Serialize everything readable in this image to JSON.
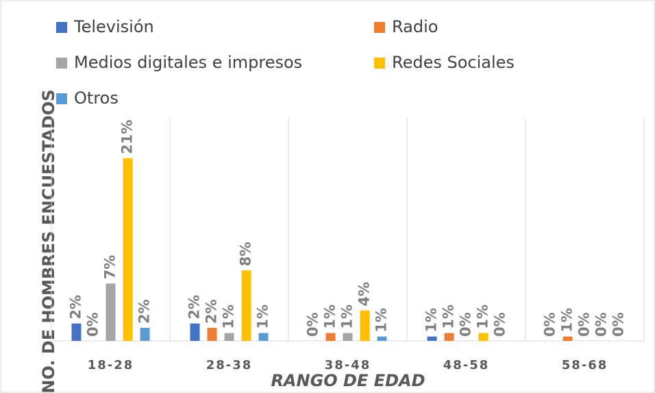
{
  "chart_data": {
    "type": "bar",
    "categories": [
      "18-28",
      "28-38",
      "38-48",
      "48-58",
      "58-68"
    ],
    "x_label": "RANGO DE EDAD",
    "y_label": "NO. DE HOMBRES ENCUESTADOS",
    "ylim": [
      0,
      25
    ],
    "series": [
      {
        "name": "Televisión",
        "color": "#4472c4",
        "values": [
          2.0,
          2.0,
          0,
          0.5,
          0
        ],
        "value_labels": [
          "2%",
          "2%",
          "0%",
          "1%",
          "0%"
        ]
      },
      {
        "name": "Radio",
        "color": "#ed7d31",
        "values": [
          0,
          1.5,
          0.9,
          0.9,
          0.5
        ],
        "value_labels": [
          "0%",
          "2%",
          "1%",
          "1%",
          "1%"
        ]
      },
      {
        "name": "Medios digitales e impresos",
        "color": "#a5a5a5",
        "values": [
          6.6,
          0.9,
          0.9,
          0,
          0
        ],
        "value_labels": [
          "7%",
          "1%",
          "1%",
          "0%",
          "0%"
        ]
      },
      {
        "name": "Redes Sociales",
        "color": "#ffc000",
        "values": [
          21,
          8.1,
          3.5,
          0.9,
          0
        ],
        "value_labels": [
          "21%",
          "8%",
          "4%",
          "1%",
          "0%"
        ]
      },
      {
        "name": "Otros",
        "color": "#5b9bd5",
        "values": [
          1.5,
          0.9,
          0.5,
          0,
          0
        ],
        "value_labels": [
          "2%",
          "1%",
          "1%",
          "0%",
          "0%"
        ]
      }
    ]
  }
}
